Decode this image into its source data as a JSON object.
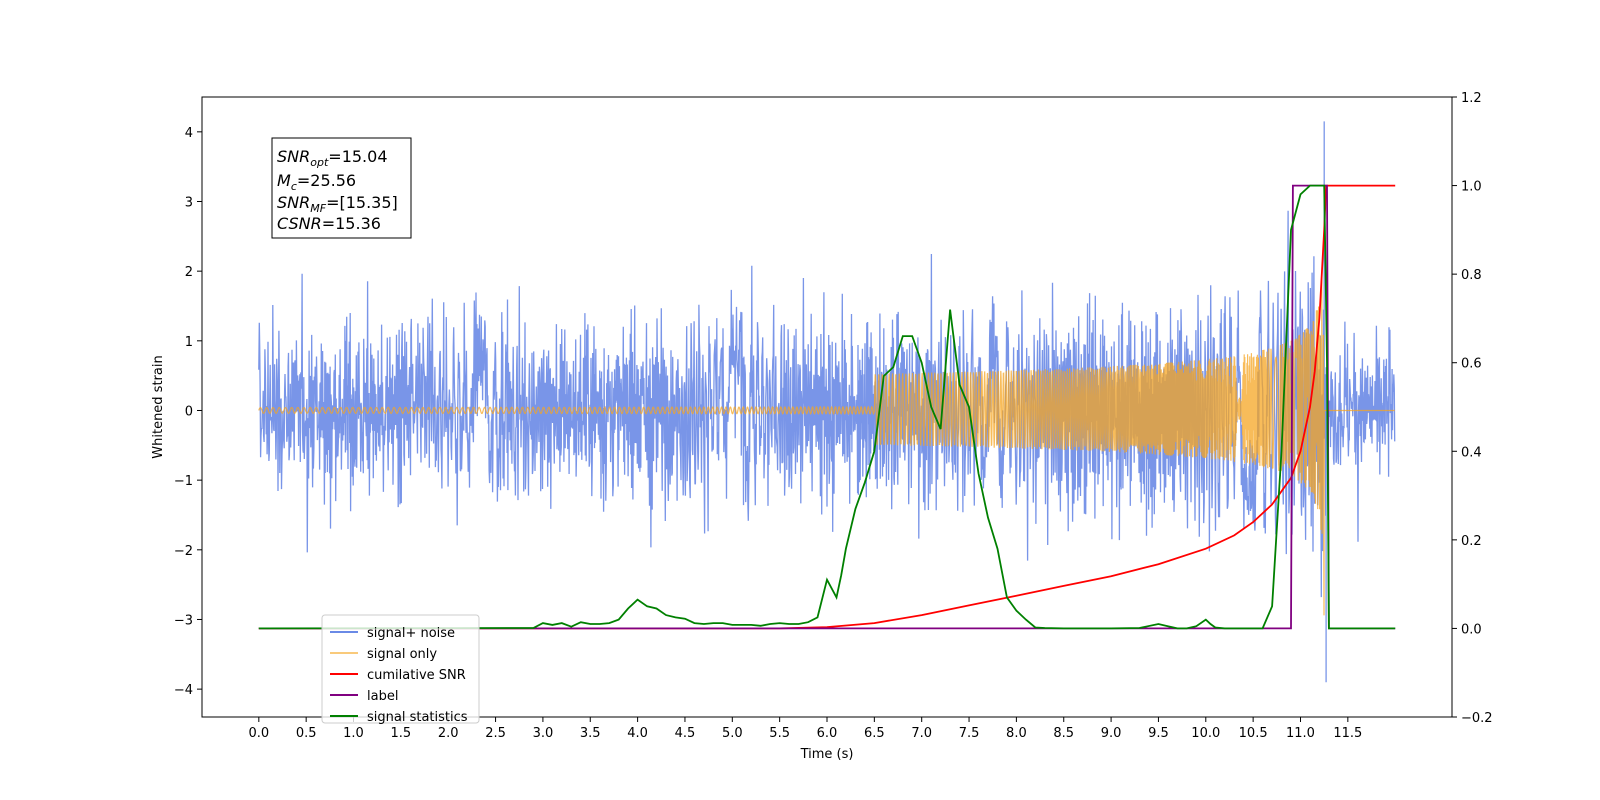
{
  "chart_data": {
    "type": "line",
    "xlabel": "Time (s)",
    "ylabel": "Whitened strain",
    "xlim": [
      -0.6,
      12.6
    ],
    "ylim": [
      -4.4,
      4.5
    ],
    "y2lim": [
      -0.2,
      1.2
    ],
    "xticks": [
      "0.0",
      "0.5",
      "1.0",
      "1.5",
      "2.0",
      "2.5",
      "3.0",
      "3.5",
      "4.0",
      "4.5",
      "5.0",
      "5.5",
      "6.0",
      "6.5",
      "7.0",
      "7.5",
      "8.0",
      "8.5",
      "9.0",
      "9.5",
      "10.0",
      "10.5",
      "11.0",
      "11.5"
    ],
    "yticks": [
      "4",
      "3",
      "2",
      "1",
      "0",
      "−1",
      "−2",
      "−3",
      "−4"
    ],
    "y2ticks": [
      "1.2",
      "1.0",
      "0.8",
      "0.6",
      "0.4",
      "0.2",
      "0.0",
      "−0.2"
    ],
    "annotation": {
      "snr_opt": "15.04",
      "mc": "25.56",
      "snr_mf": "[15.35]",
      "csnr": "15.36"
    },
    "legend_position": "lower-left",
    "series": [
      {
        "name": "signal+ noise",
        "color": "#6a8ae6",
        "axis": "left",
        "noise_amplitude": 1.8,
        "spike_x": [
          11.25,
          11.27
        ],
        "spike_y": [
          4.15,
          -3.9
        ]
      },
      {
        "name": "signal only",
        "color": "#f5a623",
        "axis": "left",
        "chirp_peak_x": 11.25,
        "chirp_peak_amplitude": 3.0
      },
      {
        "name": "cumilative SNR",
        "color": "#ff0000",
        "axis": "right",
        "x": [
          0,
          5.5,
          6.0,
          6.5,
          7.0,
          7.5,
          8.0,
          8.5,
          9.0,
          9.5,
          10.0,
          10.3,
          10.5,
          10.7,
          10.9,
          11.0,
          11.1,
          11.15,
          11.2,
          11.25,
          11.27,
          11.3,
          12.0
        ],
        "y": [
          0,
          0,
          0.003,
          0.012,
          0.03,
          0.052,
          0.074,
          0.096,
          0.118,
          0.145,
          0.18,
          0.21,
          0.24,
          0.28,
          0.34,
          0.4,
          0.5,
          0.58,
          0.7,
          0.9,
          1.0,
          1.0,
          1.0
        ]
      },
      {
        "name": "label",
        "color": "#800080",
        "axis": "right",
        "x": [
          0,
          10.9,
          10.92,
          11.28,
          11.3,
          12.0
        ],
        "y": [
          0,
          0,
          1,
          1,
          0,
          0
        ]
      },
      {
        "name": "signal statistics",
        "color": "#008000",
        "axis": "right",
        "x": [
          0,
          2.9,
          3.0,
          3.1,
          3.2,
          3.3,
          3.4,
          3.5,
          3.6,
          3.7,
          3.8,
          3.9,
          4.0,
          4.1,
          4.2,
          4.3,
          4.4,
          4.5,
          4.6,
          4.7,
          4.8,
          4.9,
          5.0,
          5.1,
          5.2,
          5.3,
          5.4,
          5.5,
          5.6,
          5.7,
          5.8,
          5.9,
          6.0,
          6.1,
          6.15,
          6.2,
          6.3,
          6.4,
          6.5,
          6.6,
          6.7,
          6.8,
          6.9,
          7.0,
          7.1,
          7.2,
          7.3,
          7.4,
          7.5,
          7.6,
          7.7,
          7.8,
          7.9,
          8.0,
          8.1,
          8.2,
          8.3,
          8.5,
          9.0,
          9.3,
          9.5,
          9.6,
          9.7,
          9.8,
          9.9,
          10.0,
          10.05,
          10.1,
          10.2,
          10.4,
          10.6,
          10.7,
          10.8,
          10.9,
          11.0,
          11.1,
          11.25,
          11.28,
          11.3,
          11.5,
          12.0
        ],
        "y": [
          0,
          0.001,
          0.012,
          0.008,
          0.012,
          0.004,
          0.014,
          0.01,
          0.01,
          0.012,
          0.02,
          0.045,
          0.065,
          0.05,
          0.045,
          0.03,
          0.025,
          0.022,
          0.012,
          0.01,
          0.012,
          0.012,
          0.008,
          0.008,
          0.008,
          0.006,
          0.01,
          0.012,
          0.01,
          0.01,
          0.014,
          0.025,
          0.11,
          0.07,
          0.12,
          0.18,
          0.27,
          0.33,
          0.4,
          0.57,
          0.59,
          0.66,
          0.66,
          0.6,
          0.5,
          0.45,
          0.72,
          0.55,
          0.5,
          0.35,
          0.25,
          0.18,
          0.07,
          0.04,
          0.02,
          0.002,
          0.001,
          0,
          0,
          0.001,
          0.01,
          0.005,
          0,
          0,
          0.005,
          0.02,
          0.01,
          0.002,
          0,
          0,
          0,
          0.05,
          0.4,
          0.9,
          0.98,
          1.0,
          1.0,
          0.6,
          0,
          0,
          0
        ]
      }
    ]
  }
}
